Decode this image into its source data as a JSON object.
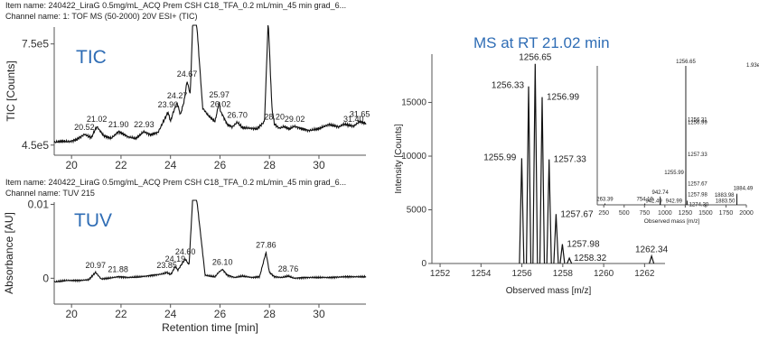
{
  "top_chart": {
    "item_name": "Item name: 240422_LiraG 0.5mg/mL_ACQ Prem CSH C18_TFA_0.2 mL/min_45 min grad_6...",
    "channel_name": "Channel name: 1: TOF MS (50-2000) 20V ESI+ (TIC)",
    "inset_label": "TIC"
  },
  "bottom_chart": {
    "item_name": "Item name: 240422_LiraG 0.5mg/mL_ACQ Prem CSH C18_TFA_0.2 mL/min_45 min grad_6...",
    "channel_name": "Channel name: TUV 215",
    "inset_label": "TUV"
  },
  "ms_chart": {
    "title": "MS at RT 21.02 min"
  },
  "colors": {
    "trace": "#111111",
    "label_blue": "#2f6db5"
  },
  "chart_data": [
    {
      "type": "line",
      "ylabel": "TIC [Counts]",
      "xlim": [
        19.3,
        31.9
      ],
      "ylim": [
        420000,
        800000
      ],
      "xticks": [
        "20",
        "22",
        "24",
        "26",
        "28",
        "30"
      ],
      "yticks": [
        "4.5e5",
        "7.5e5"
      ],
      "series": [
        {
          "x": [
            19.3,
            19.6,
            19.9,
            20.2,
            20.52,
            20.8,
            21.02,
            21.3,
            21.6,
            21.9,
            22.3,
            22.6,
            22.93,
            23.2,
            23.5,
            23.9,
            24.0,
            24.1,
            24.27,
            24.4,
            24.55,
            24.67,
            24.8,
            24.9,
            25.05,
            25.3,
            25.5,
            25.8,
            25.97,
            26.02,
            26.1,
            26.3,
            26.5,
            26.7,
            26.9,
            27.2,
            27.5,
            27.8,
            27.95,
            28.1,
            28.2,
            28.4,
            28.6,
            28.8,
            29.02,
            29.3,
            29.6,
            30.0,
            30.4,
            30.8,
            31.0,
            31.4,
            31.65,
            31.9
          ],
          "y": [
            458000,
            462000,
            460000,
            466000,
            482000,
            472000,
            505000,
            478000,
            470000,
            490000,
            474000,
            470000,
            490000,
            480000,
            488000,
            548000,
            520000,
            545000,
            575000,
            540000,
            580000,
            640000,
            600000,
            820000,
            820000,
            560000,
            540000,
            520000,
            578000,
            550000,
            540000,
            510000,
            504000,
            518000,
            502000,
            500000,
            498000,
            520000,
            820000,
            560000,
            512000,
            500000,
            505000,
            498000,
            506000,
            498000,
            493000,
            499000,
            511000,
            504000,
            512000,
            506000,
            520000,
            514000
          ]
        }
      ],
      "annotations": [
        "20.52",
        "21.02",
        "21.90",
        "22.93",
        "23.90",
        "24.27",
        "24.67",
        "25.97",
        "26.02",
        "26.70",
        "28.20",
        "29.02",
        "31.40",
        "31.65"
      ]
    },
    {
      "type": "line",
      "xlabel": "Retention time [min]",
      "ylabel": "Absorbance [AU]",
      "xlim": [
        19.3,
        31.9
      ],
      "ylim": [
        -0.0035,
        0.0103
      ],
      "xticks": [
        "20",
        "22",
        "24",
        "26",
        "28",
        "30"
      ],
      "yticks": [
        "0",
        "0.01"
      ],
      "series": [
        {
          "x": [
            19.3,
            19.8,
            20.3,
            20.7,
            20.97,
            21.2,
            21.5,
            21.88,
            22.3,
            22.8,
            23.3,
            23.7,
            23.85,
            24.0,
            24.05,
            24.19,
            24.3,
            24.45,
            24.6,
            24.75,
            24.9,
            25.05,
            25.4,
            25.8,
            25.95,
            26.1,
            26.3,
            26.6,
            26.9,
            27.3,
            27.6,
            27.86,
            28.0,
            28.2,
            28.5,
            28.76,
            29.0,
            29.5,
            30.0,
            30.5,
            31.0,
            31.5,
            31.9
          ],
          "y": [
            -0.0005,
            -0.0003,
            -0.0003,
            -0.0002,
            0.0008,
            -0.0001,
            0.0,
            0.0002,
            0.0001,
            0.0002,
            0.0004,
            0.0006,
            0.0008,
            0.0005,
            0.0007,
            0.0016,
            0.0011,
            0.0019,
            0.0026,
            0.0018,
            0.011,
            0.011,
            0.0004,
            0.0002,
            0.0008,
            0.0012,
            0.0004,
            0.0001,
            0.0003,
            0.0001,
            0.0002,
            0.0035,
            0.0008,
            0.0002,
            0.0001,
            0.0003,
            0.0,
            0.0001,
            0.0001,
            0.0001,
            0.0002,
            0.0002,
            0.0002
          ]
        }
      ],
      "annotations": [
        "20.97",
        "21.88",
        "23.85",
        "24.19",
        "24.60",
        "26.10",
        "27.86",
        "28.76"
      ]
    },
    {
      "type": "bar",
      "title": "MS at RT 21.02 min",
      "xlabel": "Observed mass [m/z]",
      "ylabel": "Intensity [Counts]",
      "xlim": [
        1251.6,
        1263.0
      ],
      "ylim": [
        0,
        19500
      ],
      "xticks": [
        "1252",
        "1254",
        "1256",
        "1258",
        "1260",
        "1262"
      ],
      "yticks": [
        "0",
        "5000",
        "10000",
        "15000"
      ],
      "peaks_x": [
        1255.99,
        1256.33,
        1256.65,
        1256.99,
        1257.33,
        1257.67,
        1257.98,
        1258.32,
        1262.34
      ],
      "peaks_y": [
        9800,
        16500,
        18600,
        15500,
        9700,
        4600,
        1800,
        500,
        700
      ],
      "peak_labels": [
        "1255.99",
        "1256.33",
        "1256.65",
        "1256.99",
        "1257.33",
        "1257.67",
        "1257.98",
        "1258.32",
        "1262.34"
      ]
    },
    {
      "type": "bar",
      "xlabel": "Observed mass [m/z]",
      "xlim": [
        170,
        2000
      ],
      "xticks": [
        "250",
        "500",
        "750",
        "1000",
        "1250",
        "1500",
        "1750",
        "2000"
      ],
      "peaks_x": [
        263.39,
        754.19,
        942.49,
        942.74,
        942.99,
        1255.99,
        1256.31,
        1256.65,
        1256.99,
        1257.33,
        1257.67,
        1257.98,
        1274.3,
        1883.5,
        1883.98,
        1884.49
      ],
      "peaks_y": [
        1,
        1,
        3,
        6,
        2,
        24,
        62,
        100,
        60,
        37,
        16,
        8,
        3,
        3,
        7,
        8
      ],
      "peak_labels": [
        "263.39",
        "754.19",
        "942.49",
        "942.74",
        "942.99",
        "1255.99",
        "1256.31",
        "1256.65",
        "1256.99",
        "1257.33",
        "1257.67",
        "1257.98",
        "1274.30",
        "1883.50",
        "1883.98",
        "1884.49"
      ],
      "corner_label": "1.93e"
    }
  ]
}
